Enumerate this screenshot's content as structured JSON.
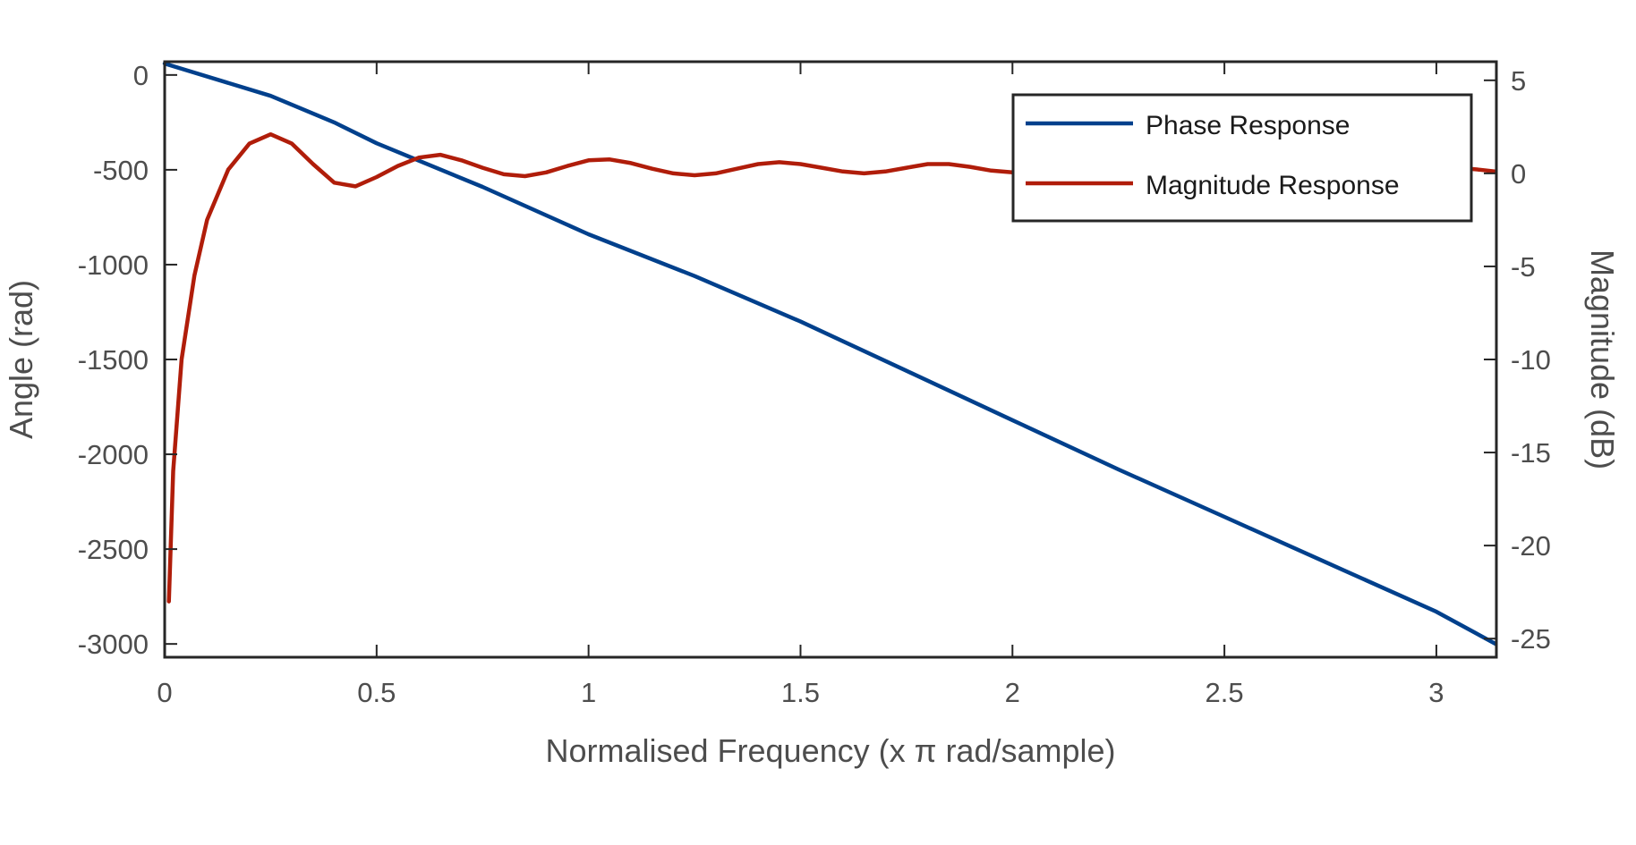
{
  "chart_data": {
    "type": "line",
    "title": "",
    "xlabel": "Normalised Frequency (x   π rad/sample)",
    "ylabel_left": "Angle (rad)",
    "ylabel_right": "Magnitude (dB)",
    "xlim": [
      0,
      3.14159
    ],
    "ylim_left": [
      -3070,
      70
    ],
    "ylim_right": [
      -26,
      6
    ],
    "x_ticks": [
      0,
      0.5,
      1,
      1.5,
      2,
      2.5,
      3
    ],
    "x_tick_labels": [
      "0",
      "0.5",
      "1",
      "1.5",
      "2",
      "2.5",
      "3"
    ],
    "y_left_ticks": [
      0,
      -500,
      -1000,
      -1500,
      -2000,
      -2500,
      -3000
    ],
    "y_left_tick_labels": [
      "0",
      "-500",
      "-1000",
      "-1500",
      "-2000",
      "-2500",
      "-3000"
    ],
    "y_right_ticks": [
      5,
      0,
      -5,
      -10,
      -15,
      -20,
      -25
    ],
    "y_right_tick_labels": [
      "5",
      "0",
      "-5",
      "-10",
      "-15",
      "-20",
      "-25"
    ],
    "grid": false,
    "legend_position": "top-right",
    "legend": [
      "Phase Response",
      "Magnitude Response"
    ],
    "series": [
      {
        "name": "Phase Response",
        "axis": "left",
        "color": "#00408c",
        "x": [
          0,
          0.25,
          0.4,
          0.5,
          0.75,
          1.0,
          1.25,
          1.5,
          1.75,
          2.0,
          2.25,
          2.5,
          2.75,
          3.0,
          3.14
        ],
        "y": [
          60,
          -110,
          -250,
          -360,
          -590,
          -840,
          -1060,
          -1300,
          -1560,
          -1820,
          -2080,
          -2330,
          -2580,
          -2830,
          -3000
        ]
      },
      {
        "name": "Magnitude Response",
        "axis": "right",
        "color": "#b01d0a",
        "x": [
          0.01,
          0.02,
          0.04,
          0.07,
          0.1,
          0.15,
          0.2,
          0.25,
          0.3,
          0.35,
          0.4,
          0.45,
          0.5,
          0.55,
          0.6,
          0.65,
          0.7,
          0.75,
          0.8,
          0.85,
          0.9,
          0.95,
          1.0,
          1.05,
          1.1,
          1.15,
          1.2,
          1.25,
          1.3,
          1.35,
          1.4,
          1.45,
          1.5,
          1.55,
          1.6,
          1.65,
          1.7,
          1.75,
          1.8,
          1.85,
          1.9,
          1.95,
          2.0,
          2.05,
          2.1,
          2.15,
          2.2,
          2.25,
          2.3,
          2.35,
          2.4,
          2.45,
          2.5,
          2.55,
          2.6,
          2.65,
          2.7,
          2.75,
          2.8,
          2.85,
          2.9,
          2.95,
          3.0,
          3.05,
          3.1,
          3.14
        ],
        "y": [
          -23,
          -16,
          -10,
          -5.5,
          -2.5,
          0.2,
          1.6,
          2.1,
          1.6,
          0.5,
          -0.5,
          -0.7,
          -0.2,
          0.4,
          0.85,
          1.0,
          0.7,
          0.3,
          -0.05,
          -0.15,
          0.05,
          0.4,
          0.7,
          0.75,
          0.55,
          0.25,
          0.0,
          -0.1,
          0.0,
          0.25,
          0.5,
          0.6,
          0.5,
          0.3,
          0.1,
          0.0,
          0.1,
          0.3,
          0.5,
          0.5,
          0.35,
          0.15,
          0.05,
          0.0,
          0.1,
          0.25,
          0.4,
          0.45,
          0.4,
          0.25,
          0.1,
          0.05,
          0.1,
          0.2,
          0.35,
          0.4,
          0.35,
          0.25,
          0.15,
          0.1,
          0.1,
          0.2,
          0.3,
          0.3,
          0.2,
          0.1
        ]
      }
    ]
  }
}
